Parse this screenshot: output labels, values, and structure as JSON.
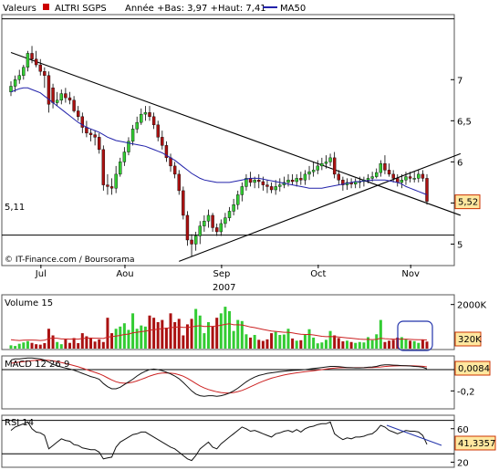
{
  "header": {
    "prefix": "Valeurs",
    "name": "ALTRI SGPS",
    "range_text": "Année +Bas: 3,97 +Haut: 7,41",
    "ma_label": "MA50"
  },
  "colors": {
    "up": "#33cc33",
    "down": "#aa1111",
    "ma": "#2222aa",
    "macd": "#111111",
    "signal": "#cc2222",
    "rsi": "#111111",
    "badge_bg": "#ffe8a0",
    "badge_border": "#cc3300"
  },
  "price_panel": {
    "ylim": [
      4.75,
      7.78
    ],
    "yticks": [
      5,
      5.5,
      6,
      6.5,
      7
    ],
    "ytick_labels": [
      "5",
      "5,5",
      "6",
      "6,5",
      "7"
    ],
    "top_line": 7.74,
    "support_level": 5.11,
    "support_label": "5,11",
    "last_price_label": "5,52",
    "last_price": 5.52,
    "credit": "© IT-Finance.com / Boursorama",
    "trendlines": [
      {
        "from": [
          0,
          7.33
        ],
        "to": [
          107,
          5.35
        ]
      },
      {
        "from": [
          40,
          4.79
        ],
        "to": [
          107,
          6.1
        ]
      }
    ]
  },
  "xaxis": {
    "month_labels": [
      {
        "label": "Jul",
        "index": 8
      },
      {
        "label": "Aou",
        "index": 28
      },
      {
        "label": "Sep",
        "index": 51
      },
      {
        "label": "Oct",
        "index": 74
      },
      {
        "label": "Nov",
        "index": 96
      }
    ],
    "year_label": "2007"
  },
  "volume_panel": {
    "title": "Volume 15",
    "yticks": [
      2000
    ],
    "ytick_labels": [
      "2000K"
    ],
    "ylim": [
      0,
      2400
    ],
    "last_label": "320K"
  },
  "macd_panel": {
    "title": "MACD 12 26 9",
    "ylim": [
      -0.36,
      0.12
    ],
    "yticks": [
      -0.2
    ],
    "ytick_labels": [
      "-0,2"
    ],
    "zero_line": 0,
    "last_label": "0,0084"
  },
  "rsi_panel": {
    "title": "RSI 14",
    "ylim": [
      15,
      75
    ],
    "yticks": [
      20,
      60
    ],
    "ytick_labels": [
      "20",
      "60"
    ],
    "bands": [
      30,
      70
    ],
    "last_label": "41,3357"
  },
  "chart_data": {
    "type": "candlestick",
    "title": "ALTRI SGPS",
    "categories_count": 100,
    "open": [
      6.85,
      6.92,
      7.0,
      7.05,
      7.15,
      7.32,
      7.25,
      7.18,
      7.1,
      7.05,
      6.9,
      6.72,
      6.75,
      6.83,
      6.78,
      6.75,
      6.62,
      6.55,
      6.42,
      6.35,
      6.33,
      6.3,
      6.15,
      5.72,
      5.7,
      5.68,
      5.85,
      6.0,
      6.12,
      6.25,
      6.4,
      6.48,
      6.58,
      6.6,
      6.55,
      6.45,
      6.3,
      6.2,
      6.05,
      5.95,
      5.85,
      5.65,
      5.35,
      5.05,
      5.0,
      5.1,
      5.22,
      5.28,
      5.35,
      5.2,
      5.15,
      5.25,
      5.32,
      5.4,
      5.48,
      5.6,
      5.7,
      5.8,
      5.75,
      5.78,
      5.76,
      5.72,
      5.7,
      5.66,
      5.7,
      5.72,
      5.75,
      5.78,
      5.76,
      5.8,
      5.78,
      5.85,
      5.88,
      5.9,
      5.95,
      5.98,
      6.0,
      6.05,
      5.85,
      5.78,
      5.72,
      5.75,
      5.73,
      5.76,
      5.76,
      5.78,
      5.8,
      5.82,
      5.87,
      5.98,
      5.9,
      5.85,
      5.8,
      5.75,
      5.78,
      5.82,
      5.8,
      5.8,
      5.85,
      5.8
    ],
    "high": [
      6.98,
      7.05,
      7.12,
      7.18,
      7.35,
      7.41,
      7.35,
      7.25,
      7.15,
      7.1,
      6.95,
      6.85,
      6.88,
      6.9,
      6.85,
      6.8,
      6.68,
      6.6,
      6.5,
      6.4,
      6.38,
      6.35,
      6.2,
      5.85,
      5.8,
      5.95,
      6.05,
      6.18,
      6.3,
      6.45,
      6.55,
      6.65,
      6.68,
      6.68,
      6.6,
      6.5,
      6.38,
      6.25,
      6.1,
      6.0,
      5.9,
      5.7,
      5.4,
      5.12,
      5.15,
      5.28,
      5.35,
      5.42,
      5.38,
      5.25,
      5.3,
      5.38,
      5.45,
      5.55,
      5.65,
      5.75,
      5.85,
      5.88,
      5.82,
      5.85,
      5.82,
      5.78,
      5.75,
      5.78,
      5.8,
      5.82,
      5.85,
      5.85,
      5.85,
      5.88,
      5.9,
      5.95,
      6.0,
      6.02,
      6.05,
      6.08,
      6.1,
      6.12,
      5.9,
      5.82,
      5.8,
      5.8,
      5.8,
      5.82,
      5.82,
      5.85,
      5.88,
      5.92,
      6.02,
      6.08,
      5.98,
      5.9,
      5.85,
      5.85,
      5.88,
      5.88,
      5.88,
      5.9,
      5.9,
      5.85
    ],
    "low": [
      6.8,
      6.85,
      6.95,
      7.0,
      7.1,
      7.2,
      7.15,
      7.05,
      6.9,
      6.6,
      6.65,
      6.68,
      6.7,
      6.72,
      6.7,
      6.6,
      6.5,
      6.35,
      6.3,
      6.25,
      6.2,
      6.1,
      5.65,
      5.6,
      5.6,
      5.62,
      5.82,
      5.95,
      6.08,
      6.2,
      6.35,
      6.45,
      6.5,
      6.5,
      6.4,
      6.25,
      6.15,
      6.0,
      5.88,
      5.8,
      5.6,
      5.3,
      4.98,
      4.85,
      4.92,
      5.0,
      5.15,
      5.2,
      5.15,
      5.1,
      5.1,
      5.2,
      5.28,
      5.35,
      5.42,
      5.52,
      5.65,
      5.7,
      5.68,
      5.68,
      5.65,
      5.62,
      5.62,
      5.6,
      5.64,
      5.68,
      5.7,
      5.72,
      5.7,
      5.72,
      5.72,
      5.78,
      5.82,
      5.85,
      5.9,
      5.92,
      5.95,
      5.8,
      5.72,
      5.65,
      5.66,
      5.68,
      5.68,
      5.68,
      5.7,
      5.74,
      5.76,
      5.8,
      5.82,
      5.85,
      5.82,
      5.75,
      5.7,
      5.68,
      5.72,
      5.75,
      5.75,
      5.75,
      5.76,
      5.48
    ],
    "close": [
      6.92,
      7.0,
      7.05,
      7.15,
      7.32,
      7.25,
      7.18,
      7.1,
      7.05,
      6.7,
      6.72,
      6.75,
      6.83,
      6.78,
      6.75,
      6.62,
      6.55,
      6.42,
      6.35,
      6.33,
      6.3,
      6.15,
      5.72,
      5.7,
      5.68,
      5.85,
      6.0,
      6.12,
      6.25,
      6.4,
      6.48,
      6.58,
      6.6,
      6.55,
      6.45,
      6.3,
      6.2,
      6.05,
      5.95,
      5.85,
      5.65,
      5.35,
      5.05,
      5.0,
      5.1,
      5.22,
      5.28,
      5.35,
      5.2,
      5.15,
      5.25,
      5.32,
      5.4,
      5.48,
      5.6,
      5.7,
      5.8,
      5.75,
      5.78,
      5.76,
      5.72,
      5.7,
      5.66,
      5.7,
      5.72,
      5.75,
      5.78,
      5.76,
      5.8,
      5.78,
      5.85,
      5.88,
      5.9,
      5.95,
      5.98,
      6.0,
      6.05,
      5.85,
      5.78,
      5.72,
      5.75,
      5.73,
      5.76,
      5.76,
      5.78,
      5.8,
      5.82,
      5.87,
      5.98,
      5.9,
      5.85,
      5.8,
      5.75,
      5.78,
      5.82,
      5.8,
      5.8,
      5.85,
      5.8,
      5.52
    ],
    "ma50": [
      6.85,
      6.87,
      6.89,
      6.9,
      6.9,
      6.88,
      6.86,
      6.84,
      6.8,
      6.76,
      6.72,
      6.68,
      6.64,
      6.6,
      6.56,
      6.52,
      6.48,
      6.45,
      6.42,
      6.4,
      6.38,
      6.36,
      6.33,
      6.3,
      6.28,
      6.26,
      6.25,
      6.24,
      6.23,
      6.22,
      6.21,
      6.2,
      6.19,
      6.17,
      6.15,
      6.13,
      6.11,
      6.08,
      6.05,
      6.02,
      5.98,
      5.94,
      5.9,
      5.86,
      5.83,
      5.8,
      5.78,
      5.77,
      5.76,
      5.75,
      5.75,
      5.75,
      5.75,
      5.76,
      5.77,
      5.78,
      5.79,
      5.8,
      5.8,
      5.8,
      5.79,
      5.78,
      5.77,
      5.76,
      5.75,
      5.74,
      5.73,
      5.72,
      5.71,
      5.7,
      5.69,
      5.68,
      5.68,
      5.68,
      5.68,
      5.69,
      5.7,
      5.71,
      5.72,
      5.73,
      5.74,
      5.75,
      5.76,
      5.76,
      5.77,
      5.77,
      5.78,
      5.78,
      5.78,
      5.78,
      5.77,
      5.76,
      5.75,
      5.73,
      5.7,
      5.68,
      5.66,
      5.64,
      5.62,
      5.6
    ],
    "volume": [
      150,
      120,
      220,
      280,
      340,
      260,
      200,
      180,
      250,
      900,
      600,
      300,
      200,
      420,
      260,
      480,
      250,
      700,
      560,
      480,
      320,
      420,
      300,
      1400,
      700,
      900,
      1000,
      1150,
      850,
      1600,
      900,
      1050,
      1000,
      1500,
      1400,
      1200,
      1300,
      950,
      1600,
      1200,
      1350,
      600,
      1100,
      1350,
      1800,
      1500,
      700,
      1200,
      1000,
      1400,
      1600,
      1900,
      1700,
      800,
      1300,
      1250,
      650,
      500,
      620,
      400,
      350,
      420,
      700,
      760,
      620,
      640,
      900,
      460,
      360,
      380,
      620,
      880,
      500,
      240,
      280,
      400,
      800,
      600,
      480,
      330,
      360,
      300,
      260,
      300,
      280,
      520,
      380,
      650,
      1300,
      300,
      360,
      400,
      500,
      520,
      420,
      360,
      340,
      260,
      400,
      320
    ],
    "vol_ma": [
      400,
      380,
      370,
      380,
      390,
      390,
      380,
      370,
      380,
      450,
      480,
      470,
      440,
      440,
      430,
      440,
      430,
      460,
      470,
      480,
      470,
      470,
      460,
      520,
      540,
      570,
      600,
      640,
      660,
      720,
      740,
      770,
      790,
      830,
      860,
      880,
      910,
      920,
      950,
      970,
      990,
      960,
      960,
      980,
      1020,
      1040,
      1000,
      1010,
      1010,
      1030,
      1060,
      1100,
      1130,
      1080,
      1080,
      1070,
      1030,
      980,
      950,
      910,
      870,
      830,
      800,
      780,
      760,
      740,
      740,
      710,
      680,
      650,
      640,
      640,
      620,
      590,
      560,
      540,
      550,
      540,
      530,
      510,
      490,
      470,
      450,
      430,
      420,
      420,
      410,
      420,
      470,
      450,
      440,
      430,
      430,
      430,
      430,
      420,
      410,
      400,
      400,
      390
    ],
    "macd": [
      0.09,
      0.1,
      0.1,
      0.105,
      0.11,
      0.11,
      0.105,
      0.1,
      0.09,
      0.07,
      0.05,
      0.035,
      0.025,
      0.015,
      0.005,
      -0.005,
      -0.02,
      -0.035,
      -0.05,
      -0.065,
      -0.075,
      -0.09,
      -0.13,
      -0.16,
      -0.18,
      -0.18,
      -0.165,
      -0.14,
      -0.115,
      -0.09,
      -0.06,
      -0.035,
      -0.015,
      0.0,
      0.005,
      0.0,
      -0.01,
      -0.025,
      -0.04,
      -0.06,
      -0.085,
      -0.12,
      -0.16,
      -0.2,
      -0.23,
      -0.245,
      -0.25,
      -0.245,
      -0.245,
      -0.25,
      -0.245,
      -0.235,
      -0.22,
      -0.2,
      -0.175,
      -0.145,
      -0.115,
      -0.09,
      -0.07,
      -0.055,
      -0.045,
      -0.035,
      -0.03,
      -0.025,
      -0.02,
      -0.015,
      -0.01,
      -0.008,
      -0.005,
      -0.003,
      0.0,
      0.005,
      0.01,
      0.015,
      0.02,
      0.025,
      0.03,
      0.03,
      0.028,
      0.024,
      0.02,
      0.018,
      0.016,
      0.016,
      0.018,
      0.022,
      0.025,
      0.03,
      0.04,
      0.045,
      0.045,
      0.042,
      0.04,
      0.038,
      0.036,
      0.034,
      0.03,
      0.028,
      0.022,
      0.008
    ],
    "signal": [
      0.06,
      0.065,
      0.07,
      0.075,
      0.08,
      0.085,
      0.088,
      0.09,
      0.09,
      0.087,
      0.082,
      0.075,
      0.067,
      0.058,
      0.048,
      0.038,
      0.027,
      0.014,
      0.0,
      -0.013,
      -0.026,
      -0.039,
      -0.057,
      -0.077,
      -0.097,
      -0.114,
      -0.124,
      -0.128,
      -0.125,
      -0.118,
      -0.106,
      -0.092,
      -0.077,
      -0.061,
      -0.048,
      -0.038,
      -0.032,
      -0.031,
      -0.033,
      -0.038,
      -0.048,
      -0.062,
      -0.082,
      -0.105,
      -0.13,
      -0.153,
      -0.172,
      -0.187,
      -0.198,
      -0.208,
      -0.215,
      -0.219,
      -0.219,
      -0.215,
      -0.207,
      -0.195,
      -0.179,
      -0.161,
      -0.143,
      -0.125,
      -0.109,
      -0.094,
      -0.081,
      -0.07,
      -0.06,
      -0.051,
      -0.043,
      -0.036,
      -0.03,
      -0.025,
      -0.02,
      -0.015,
      -0.01,
      -0.005,
      0.0,
      0.005,
      0.01,
      0.014,
      0.017,
      0.018,
      0.018,
      0.018,
      0.018,
      0.018,
      0.018,
      0.019,
      0.02,
      0.022,
      0.025,
      0.029,
      0.032,
      0.034,
      0.035,
      0.036,
      0.036,
      0.036,
      0.035,
      0.033,
      0.031,
      0.026
    ],
    "rsi": [
      58,
      62,
      64,
      66,
      68,
      60,
      56,
      55,
      52,
      36,
      40,
      44,
      48,
      46,
      45,
      41,
      40,
      37,
      36,
      35,
      35,
      32,
      24,
      25,
      26,
      38,
      44,
      47,
      50,
      53,
      54,
      56,
      56,
      53,
      50,
      47,
      44,
      41,
      38,
      36,
      32,
      28,
      24,
      22,
      28,
      36,
      40,
      44,
      38,
      36,
      42,
      46,
      50,
      54,
      58,
      62,
      60,
      57,
      58,
      56,
      54,
      52,
      50,
      54,
      55,
      57,
      58,
      56,
      59,
      56,
      60,
      62,
      63,
      65,
      66,
      66,
      68,
      54,
      50,
      47,
      49,
      48,
      50,
      50,
      51,
      53,
      54,
      58,
      64,
      62,
      58,
      56,
      54,
      56,
      58,
      57,
      57,
      56,
      52,
      41.3357
    ]
  }
}
